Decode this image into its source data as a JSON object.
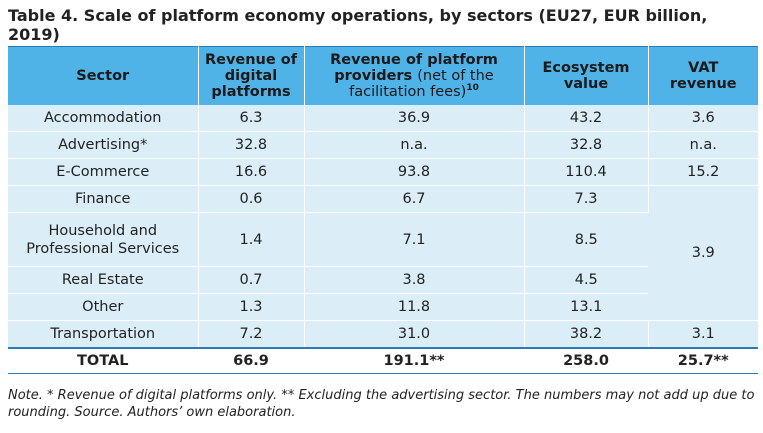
{
  "title": "Table 4. Scale of platform economy operations, by sectors (EU27, EUR billion, 2019)",
  "headers": {
    "sector": "Sector",
    "revenue_digital": "Revenue of digital platforms",
    "revenue_providers_bold": "Revenue of platform providers",
    "revenue_providers_light": "(net of the facilitation fees)",
    "revenue_providers_sup": "10",
    "ecosystem": "Ecosystem value",
    "vat": "VAT revenue"
  },
  "rows": [
    {
      "sector": "Accommodation",
      "revenue_digital": "6.3",
      "revenue_providers": "36.9",
      "ecosystem": "43.2",
      "vat": "3.6"
    },
    {
      "sector": "Advertising*",
      "revenue_digital": "32.8",
      "revenue_providers": "n.a.",
      "ecosystem": "32.8",
      "vat": "n.a."
    },
    {
      "sector": "E-Commerce",
      "revenue_digital": "16.6",
      "revenue_providers": "93.8",
      "ecosystem": "110.4",
      "vat": "15.2"
    },
    {
      "sector": "Finance",
      "revenue_digital": "0.6",
      "revenue_providers": "6.7",
      "ecosystem": "7.3"
    },
    {
      "sector": "Household and Professional Services",
      "revenue_digital": "1.4",
      "revenue_providers": "7.1",
      "ecosystem": "8.5"
    },
    {
      "sector": "Real Estate",
      "revenue_digital": "0.7",
      "revenue_providers": "3.8",
      "ecosystem": "4.5"
    },
    {
      "sector": "Other",
      "revenue_digital": "1.3",
      "revenue_providers": "11.8",
      "ecosystem": "13.1"
    },
    {
      "sector": "Transportation",
      "revenue_digital": "7.2",
      "revenue_providers": "31.0",
      "ecosystem": "38.2",
      "vat": "3.1"
    }
  ],
  "merged_vat": "3.9",
  "total": {
    "sector": "TOTAL",
    "revenue_digital": "66.9",
    "revenue_providers": "191.1**",
    "ecosystem": "258.0",
    "vat": "25.7**"
  },
  "note": "Note. * Revenue of digital platforms only. ** Excluding the advertising sector. The numbers may not add up due to rounding. Source. Authors’ own elaboration.",
  "colors": {
    "header_bg": "#4fb3e8",
    "row_band": "#dbeef8",
    "rule": "#2e7ab5"
  }
}
